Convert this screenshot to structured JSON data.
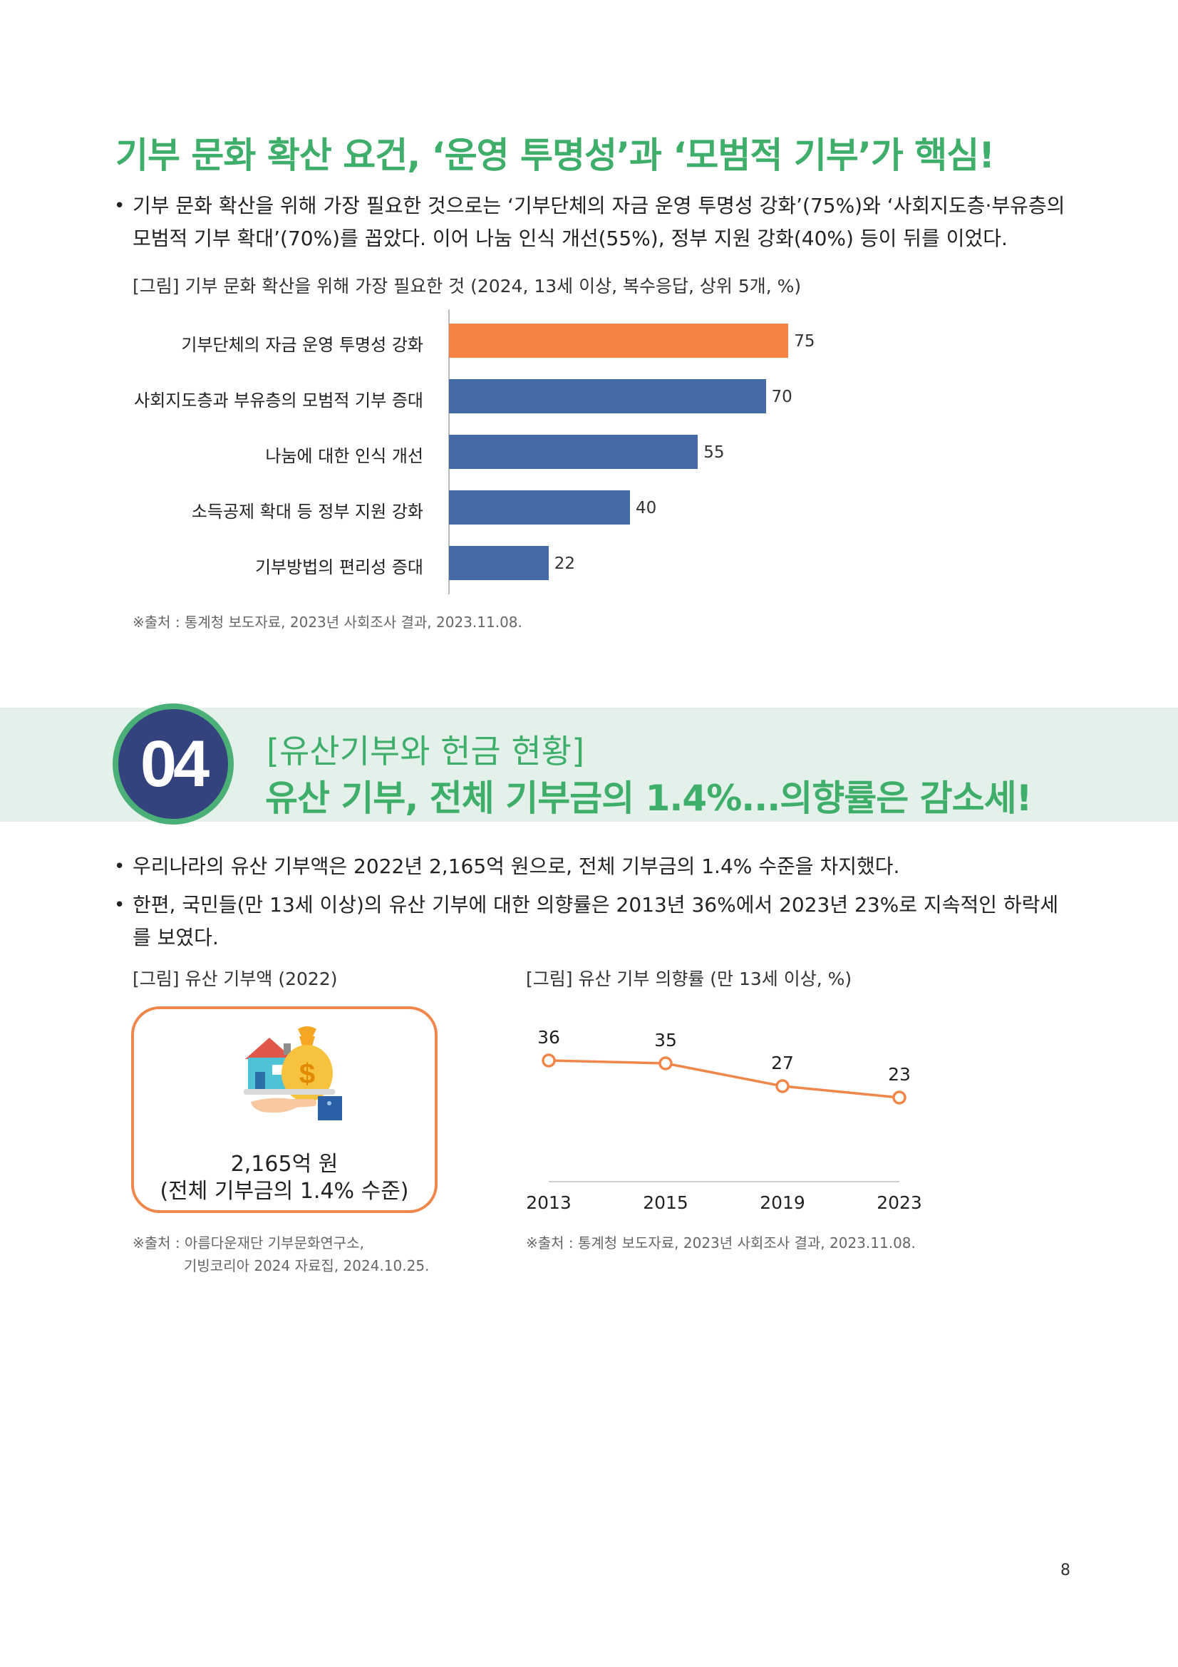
{
  "section1": {
    "heading": "기부 문화 확산 요건, ‘운영 투명성’과 ‘모범적 기부’가 핵심!",
    "bullets": [
      "기부 문화 확산을 위해 가장 필요한 것으로는 ‘기부단체의 자금 운영 투명성 강화’(75%)와 ‘사회지도층·부유층의 모범적 기부 확대’(70%)를 꼽았다. 이어 나눔 인식 개선(55%), 정부 지원 강화(40%) 등이 뒤를 이었다."
    ],
    "figure_caption": "[그림] 기부 문화 확산을 위해 가장 필요한 것 (2024, 13세 이상, 복수응답, 상위 5개, %)",
    "source": "※출처 : 통계청 보도자료, 2023년 사회조사 결과, 2023.11.08."
  },
  "section2": {
    "number": "04",
    "subtitle": "[유산기부와 헌금 현황]",
    "title": "유산 기부, 전체 기부금의 1.4%...의향률은 감소세!",
    "bullets": [
      "우리나라의 유산 기부액은 2022년 2,165억 원으로, 전체 기부금의 1.4% 수준을 차지했다.",
      "한편, 국민들(만 13세 이상)의 유산 기부에 대한 의향률은 2013년 36%에서 2023년 23%로 지속적인 하락세를 보였다."
    ],
    "left_figure": {
      "caption": "[그림] 유산 기부액 (2022)",
      "icon": "house-money-hand-icon",
      "amount": "2,165억 원",
      "share": "(전체 기부금의 1.4% 수준)",
      "source_line1": "※출처 : 아름다운재단 기부문화연구소,",
      "source_line2": "기빙코리아 2024 자료집, 2024.10.25."
    },
    "right_figure": {
      "caption": "[그림] 유산 기부 의향률 (만 13세 이상, %)",
      "source": "※출처 : 통계청 보도자료, 2023년 사회조사 결과, 2023.11.08."
    }
  },
  "page_number": "8",
  "colors": {
    "green": "#3fae6b",
    "navy": "#34437d",
    "band": "#e4f1ea",
    "bar_highlight": "#f58345",
    "bar_default": "#456aa8",
    "line": "#f0874a"
  },
  "chart_data": [
    {
      "type": "bar",
      "orientation": "horizontal",
      "title": "[그림] 기부 문화 확산을 위해 가장 필요한 것 (2024, 13세 이상, 복수응답, 상위 5개, %)",
      "categories": [
        "기부단체의 자금 운영 투명성 강화",
        "사회지도층과 부유층의 모범적 기부 증대",
        "나눔에 대한 인식 개선",
        "소득공제 확대 등 정부 지원 강화",
        "기부방법의 편리성 증대"
      ],
      "values": [
        75,
        70,
        55,
        40,
        22
      ],
      "value_labels": [
        "75",
        "70",
        "55",
        "40",
        "22"
      ],
      "highlight_index": 0,
      "xlim": [
        0,
        100
      ],
      "grid": false
    },
    {
      "type": "line",
      "title": "[그림] 유산 기부 의향률 (만 13세 이상, %)",
      "x": [
        "2013",
        "2015",
        "2019",
        "2023"
      ],
      "values": [
        36,
        35,
        27,
        23
      ],
      "value_labels": [
        "36",
        "35",
        "27",
        "23"
      ],
      "ylim": [
        0,
        40
      ],
      "grid": false
    }
  ]
}
